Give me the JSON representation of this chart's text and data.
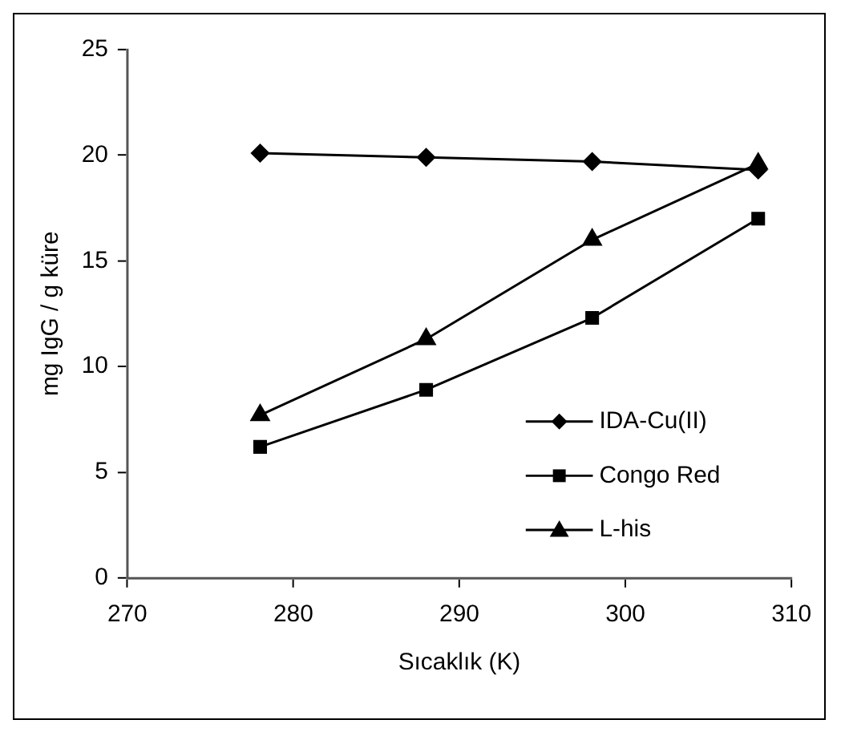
{
  "chart_data": {
    "type": "line",
    "xlabel": "Sıcaklık (K)",
    "ylabel": "mg IgG / g küre",
    "x": [
      278,
      288,
      298,
      308
    ],
    "series": [
      {
        "name": "IDA-Cu(II)",
        "color": "#000000",
        "marker": "diamond",
        "values": [
          20.1,
          19.9,
          19.7,
          19.3
        ]
      },
      {
        "name": "Congo Red",
        "color": "#000000",
        "marker": "square",
        "values": [
          6.2,
          8.9,
          12.3,
          17.0
        ]
      },
      {
        "name": "L-his",
        "color": "#000000",
        "marker": "triangle",
        "values": [
          7.7,
          11.3,
          16.0,
          19.6
        ]
      }
    ],
    "xlim": [
      270,
      310
    ],
    "xticks": [
      270,
      280,
      290,
      300,
      310
    ],
    "ylim": [
      0,
      25
    ],
    "yticks": [
      0,
      5,
      10,
      15,
      20,
      25
    ],
    "grid": false,
    "legend": "bottom right",
    "line_style": "solid"
  }
}
